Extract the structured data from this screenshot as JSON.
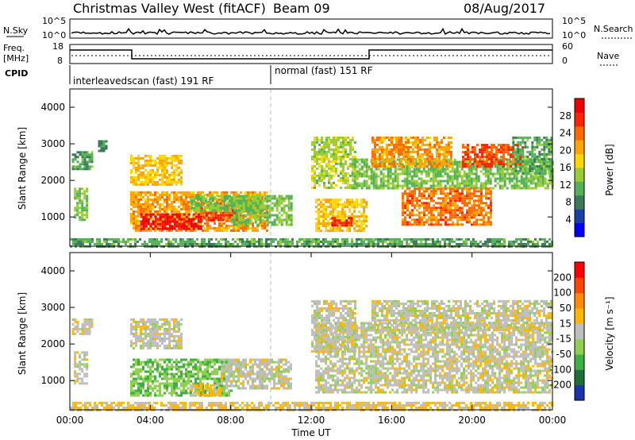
{
  "header": {
    "title": "Christmas Valley West (fitACF)",
    "beam": "Beam 09",
    "date": "08/Aug/2017"
  },
  "status_panels": {
    "nsky_label": "N.Sky",
    "nsky_ticks": [
      "10^5",
      "10^0"
    ],
    "nsky_right_ticks": [
      "10^5",
      "10^0"
    ],
    "nsearch_label": "N.Search",
    "freq_label_1": "Freq.",
    "freq_label_2": "[MHz]",
    "freq_ticks": [
      "18",
      "8"
    ],
    "nave_label": "Nave",
    "nave_ticks": [
      "60",
      "0"
    ],
    "cpid_label": "CPID",
    "cpid_segments": [
      {
        "label": "interleavedscan (fast) 191 RF",
        "start_hour": 0,
        "end_hour": 10
      },
      {
        "label": "normal (fast) 151 RF",
        "start_hour": 10,
        "end_hour": 24
      }
    ]
  },
  "chart_data": [
    {
      "type": "heatmap",
      "name": "power",
      "ylabel": "Slant Range [km]",
      "yticks": [
        "4000",
        "3000",
        "2000",
        "1000"
      ],
      "ylim": [
        200,
        4500
      ],
      "xlim": [
        0,
        24
      ],
      "colorbar_label": "Power [dB]",
      "colorbar_ticks": [
        "28",
        "24",
        "20",
        "16",
        "12",
        "8",
        "4"
      ],
      "colorbar_colors": [
        "#0000ff",
        "#1a3fa6",
        "#3a7a5a",
        "#53b257",
        "#9acd32",
        "#ffd700",
        "#ffa500",
        "#ff6a00",
        "#ff2400",
        "#ee0000"
      ],
      "colorbar_range": [
        0,
        30
      ],
      "regions": [
        {
          "t0": 0.1,
          "t1": 1.1,
          "r0": 2300,
          "r1": 2800,
          "value": 10
        },
        {
          "t0": 0.2,
          "t1": 0.8,
          "r0": 900,
          "r1": 1800,
          "value": 12
        },
        {
          "t0": 1.4,
          "t1": 1.8,
          "r0": 2800,
          "r1": 3100,
          "value": 8
        },
        {
          "t0": 3.0,
          "t1": 5.6,
          "r0": 1900,
          "r1": 2700,
          "value": 18
        },
        {
          "t0": 3.0,
          "t1": 9.8,
          "r0": 600,
          "r1": 1700,
          "value": 20
        },
        {
          "t0": 3.5,
          "t1": 6.5,
          "r0": 650,
          "r1": 1100,
          "value": 28
        },
        {
          "t0": 6.5,
          "t1": 8.5,
          "r0": 900,
          "r1": 1400,
          "value": 25
        },
        {
          "t0": 6.0,
          "t1": 9.5,
          "r0": 1200,
          "r1": 1600,
          "value": 12
        },
        {
          "t0": 8.0,
          "t1": 11.0,
          "r0": 800,
          "r1": 1600,
          "value": 12
        },
        {
          "t0": 12.0,
          "t1": 14.2,
          "r0": 1800,
          "r1": 3200,
          "value": 14
        },
        {
          "t0": 12.2,
          "t1": 14.8,
          "r0": 600,
          "r1": 1500,
          "value": 18
        },
        {
          "t0": 13.0,
          "t1": 14.0,
          "r0": 800,
          "r1": 1000,
          "value": 26
        },
        {
          "t0": 14.0,
          "t1": 24.0,
          "r0": 1800,
          "r1": 2600,
          "value": 12
        },
        {
          "t0": 15.0,
          "t1": 19.0,
          "r0": 2400,
          "r1": 3200,
          "value": 20
        },
        {
          "t0": 16.5,
          "t1": 21.0,
          "r0": 800,
          "r1": 1800,
          "value": 22
        },
        {
          "t0": 19.5,
          "t1": 22.5,
          "r0": 2400,
          "r1": 3000,
          "value": 24
        },
        {
          "t0": 22.0,
          "t1": 24.0,
          "r0": 2200,
          "r1": 3200,
          "value": 10
        },
        {
          "t0": 0.0,
          "t1": 24.0,
          "r0": 200,
          "r1": 420,
          "value": 10
        }
      ]
    },
    {
      "type": "heatmap",
      "name": "velocity",
      "ylabel": "Slant Range [km]",
      "yticks": [
        "4000",
        "3000",
        "2000",
        "1000"
      ],
      "ylim": [
        200,
        4500
      ],
      "xlim": [
        0,
        24
      ],
      "xticks": [
        "00:00",
        "04:00",
        "08:00",
        "12:00",
        "16:00",
        "20:00",
        "00:00"
      ],
      "xlabel": "Time UT",
      "colorbar_label": "Velocity [m s⁻¹]",
      "colorbar_ticks": [
        "200",
        "100",
        "50",
        "15",
        "-15",
        "-50",
        "-100",
        "-200"
      ],
      "colorbar_colors": [
        "#1a33b0",
        "#1e6e3a",
        "#3cb043",
        "#8fd14f",
        "#bebebe",
        "#ffb700",
        "#ff8c00",
        "#ff4500",
        "#ff0000"
      ],
      "colorbar_range": [
        -200,
        200
      ],
      "regions": [
        {
          "t0": 0.1,
          "t1": 1.1,
          "r0": 2300,
          "r1": 2700,
          "value": 0
        },
        {
          "t0": 0.2,
          "t1": 0.8,
          "r0": 900,
          "r1": 1800,
          "value": 0
        },
        {
          "t0": 3.0,
          "t1": 5.6,
          "r0": 1900,
          "r1": 2700,
          "value": 0
        },
        {
          "t0": 3.0,
          "t1": 8.0,
          "r0": 600,
          "r1": 1600,
          "value": -60
        },
        {
          "t0": 7.5,
          "t1": 11.0,
          "r0": 800,
          "r1": 1600,
          "value": 0
        },
        {
          "t0": 6.0,
          "t1": 7.5,
          "r0": 600,
          "r1": 900,
          "value": 40
        },
        {
          "t0": 12.0,
          "t1": 14.2,
          "r0": 1800,
          "r1": 3200,
          "value": 0
        },
        {
          "t0": 12.2,
          "t1": 24.0,
          "r0": 700,
          "r1": 2600,
          "value": 0
        },
        {
          "t0": 15.0,
          "t1": 24.0,
          "r0": 2400,
          "r1": 3200,
          "value": 0
        },
        {
          "t0": 0.0,
          "t1": 24.0,
          "r0": 200,
          "r1": 420,
          "value": 30
        }
      ]
    }
  ]
}
